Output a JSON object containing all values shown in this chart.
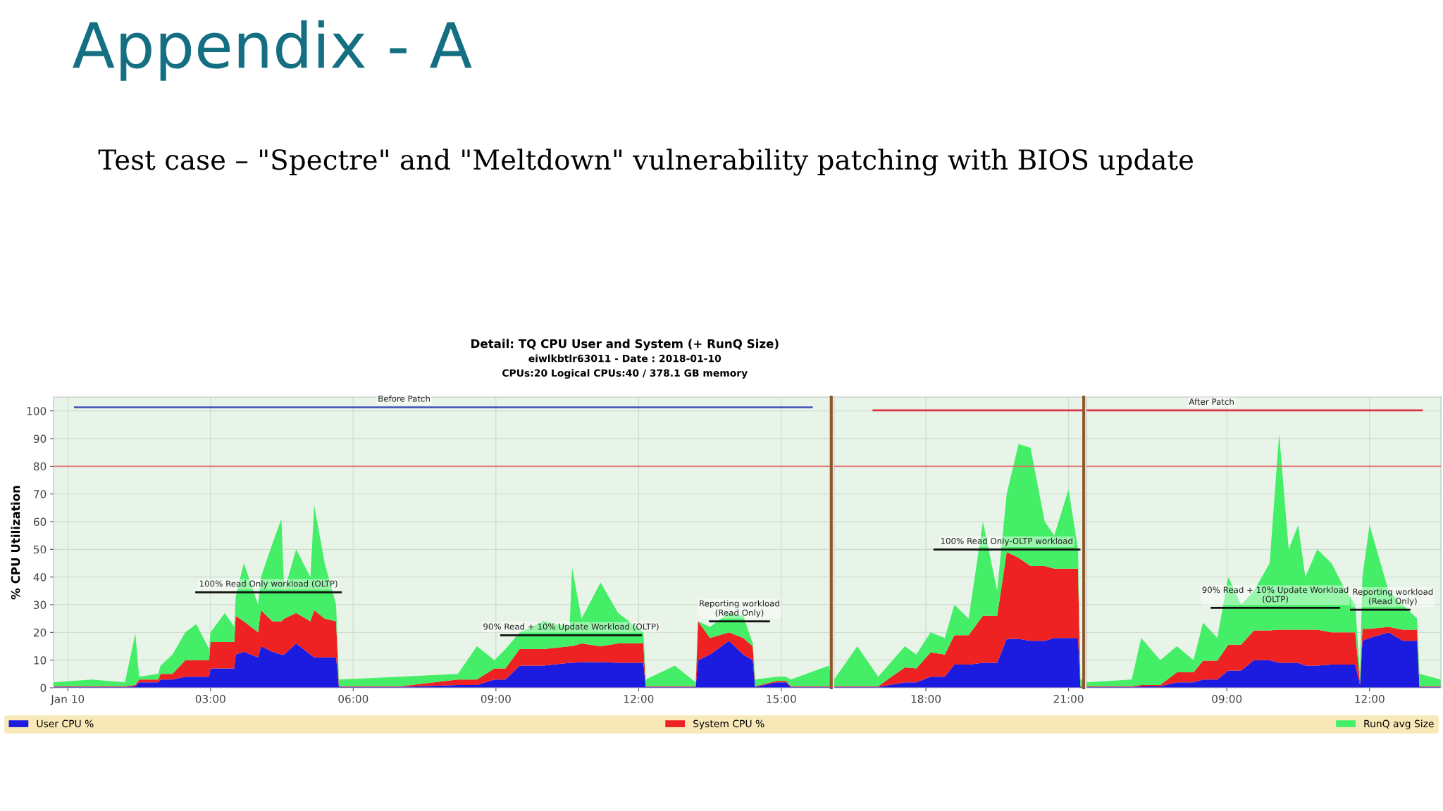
{
  "chart_data": [
    {
      "type": "area",
      "title": "Appendix - A",
      "subtitle": "Test case – \"Spectre\" and \"Meltdown\" vulnerability patching with BIOS update",
      "ylabel": "% CPU Utilization",
      "stacked": true,
      "grid": true,
      "legend": "bottom",
      "xlim": [
        -0.3,
        16.05
      ],
      "xticks": [
        {
          "value": 0,
          "label": "Jan 10"
        },
        {
          "value": 3,
          "label": "03:00"
        },
        {
          "value": 6,
          "label": "06:00"
        },
        {
          "value": 9,
          "label": "09:00"
        },
        {
          "value": 12,
          "label": "12:00"
        },
        {
          "value": 15,
          "label": "15:00"
        }
      ],
      "ylim": [
        0,
        105
      ],
      "yticks": [
        0,
        10,
        20,
        30,
        40,
        50,
        60,
        70,
        80,
        90,
        100
      ],
      "ref_lines": [
        {
          "axis": "y",
          "value": 80,
          "color": "#e07070"
        }
      ],
      "x": [
        -0.3,
        0.5,
        1.2,
        1.42,
        1.5,
        1.9,
        1.95,
        2.2,
        2.47,
        2.7,
        2.97,
        3.0,
        3.3,
        3.5,
        3.53,
        3.7,
        4.0,
        4.06,
        4.3,
        4.49,
        4.55,
        4.8,
        5.1,
        5.18,
        5.4,
        5.64,
        5.7,
        7.0,
        8.2,
        8.6,
        8.97,
        9.2,
        9.5,
        10.0,
        10.55,
        10.6,
        10.8,
        11.2,
        11.57,
        12.1,
        12.15,
        12.76,
        13.2,
        13.25,
        13.5,
        13.9,
        14.2,
        14.4,
        14.45,
        14.9,
        15.1,
        15.2,
        16.0,
        16.05
      ],
      "series": [
        {
          "name": "User CPU %",
          "color": "#1c1ce0",
          "values": [
            0.3,
            0.3,
            0.3,
            0.5,
            2,
            2,
            3,
            3,
            4,
            4,
            4,
            7,
            7,
            7,
            12,
            13,
            11,
            15,
            13,
            12,
            12,
            16,
            12,
            11,
            11,
            11,
            0.3,
            0.3,
            1,
            1,
            3,
            3,
            8,
            8,
            9,
            9,
            9.3,
            9.3,
            9,
            9,
            0.3,
            0.3,
            0.3,
            10,
            12,
            17,
            12,
            10,
            0.3,
            2,
            2,
            0.3,
            0.3,
            0.3
          ]
        },
        {
          "name": "System CPU %",
          "color": "#ee2222",
          "values": [
            0.3,
            0.3,
            0.3,
            0.5,
            1,
            1,
            2,
            2,
            6,
            6,
            6,
            9.5,
            9.5,
            9.5,
            14,
            11,
            9,
            13,
            11,
            12,
            13,
            11,
            12,
            17,
            14,
            13,
            0.3,
            0.3,
            2,
            2,
            4,
            4,
            6,
            6,
            6,
            6,
            6.7,
            5.7,
            7,
            7,
            0.3,
            0.3,
            0.3,
            14,
            6,
            3,
            6,
            5,
            0.3,
            0.5,
            0.5,
            0.3,
            0.3,
            0.3
          ]
        },
        {
          "name": "RunQ avg Size",
          "color": "#44ee66",
          "values": [
            1.4,
            2.4,
            1.4,
            18.6,
            1,
            2,
            3,
            7,
            10,
            13,
            4,
            3.5,
            10.5,
            5.5,
            7,
            21,
            10,
            12,
            28,
            37,
            10,
            23,
            16,
            38,
            20,
            6,
            2.4,
            3.4,
            2,
            12,
            3,
            7,
            6,
            10,
            7,
            28.5,
            9,
            23,
            11,
            4,
            2.4,
            7.4,
            1.4,
            0,
            4,
            7,
            8,
            1,
            2.4,
            1.5,
            1.5,
            2.4,
            7.4,
            2.4
          ]
        },
        {
          "type": "line",
          "color": "#4a5ab8",
          "x": [
            0.15,
            15.64
          ],
          "values": [
            101.3,
            101.3
          ]
        },
        {
          "type": "line",
          "color": "#111111",
          "x": [
            2.7,
            5.74
          ],
          "values": [
            34.5,
            34.5
          ]
        },
        {
          "type": "line",
          "color": "#111111",
          "x": [
            9.11,
            12.05
          ],
          "values": [
            19,
            19
          ]
        },
        {
          "type": "line",
          "color": "#111111",
          "x": [
            13.5,
            14.74
          ],
          "values": [
            24,
            24
          ]
        }
      ],
      "annotations": [
        "Detail: TQ CPU User and System (+ RunQ Size)",
        "eiwlkbtlr63011 - Date : 2018-01-10",
        "CPUs:20 Logical CPUs:40 / 378.1 GB memory",
        {
          "text": "Before Patch",
          "x": 7.07,
          "y": 101.3
        },
        {
          "text": "100% Read Only workload (OLTP)",
          "x": 4.22,
          "y": 34.5
        },
        {
          "text": "90% Read + 10% Update Workload (OLTP)",
          "x": 10.58,
          "y": 19
        },
        {
          "text": "Reporting workload\n(Read Only)",
          "x": 14.12,
          "y": 24
        }
      ]
    },
    {
      "type": "area",
      "stacked": true,
      "grid": true,
      "tick_labels": "x",
      "xlim": [
        16.07,
        21.32
      ],
      "xticks": [
        {
          "value": 18,
          "label": "18:00"
        },
        {
          "value": 21,
          "label": "21:00"
        }
      ],
      "ylim": [
        0,
        105
      ],
      "yticks": [
        0,
        10,
        20,
        30,
        40,
        50,
        60,
        70,
        80,
        90,
        100
      ],
      "ref_lines": [
        {
          "axis": "y",
          "value": 80,
          "color": "#e07070"
        }
      ],
      "x": [
        16.07,
        16.56,
        17.0,
        17.56,
        17.8,
        18.1,
        18.4,
        18.6,
        18.9,
        19.2,
        19.5,
        19.7,
        19.95,
        20.2,
        20.5,
        20.7,
        21.0,
        21.2,
        21.25,
        21.32
      ],
      "series": [
        {
          "color": "#1c1ce0",
          "values": [
            0.3,
            0.3,
            0.3,
            2,
            2,
            4,
            4,
            8.4,
            8.4,
            9,
            9,
            17.7,
            17.7,
            17,
            17,
            18,
            18,
            18,
            0.3,
            0.3
          ]
        },
        {
          "color": "#ee2222",
          "values": [
            0.3,
            0.3,
            0.3,
            5.4,
            5,
            8.8,
            8,
            10.6,
            10.6,
            17,
            17,
            31.3,
            29.3,
            27,
            27,
            25,
            25,
            25,
            0.3,
            0.3
          ]
        },
        {
          "color": "#44ee66",
          "values": [
            2.4,
            14.4,
            3.4,
            7.6,
            5,
            7.2,
            6,
            11,
            6,
            34,
            9,
            21,
            41,
            42.7,
            16,
            12,
            28.6,
            7,
            2.4,
            2.4
          ]
        },
        {
          "type": "line",
          "color": "#dd3344",
          "x": [
            16.9,
            21.32
          ],
          "values": [
            100.2,
            100.2
          ]
        },
        {
          "type": "line",
          "color": "#111111",
          "x": [
            18.18,
            21.23
          ],
          "values": [
            49.9,
            49.9
          ]
        }
      ],
      "annotations": [
        {
          "text": "100% Read Only-OLTP workload",
          "x": 19.7,
          "y": 49.9
        }
      ]
    },
    {
      "type": "area",
      "stacked": true,
      "grid": true,
      "tick_labels": "x",
      "xlim": [
        6.05,
        13.5
      ],
      "xticks": [
        {
          "value": 9,
          "label": "09:00"
        },
        {
          "value": 12,
          "label": "12:00"
        }
      ],
      "ylim": [
        0,
        105
      ],
      "yticks": [
        0,
        10,
        20,
        30,
        40,
        50,
        60,
        70,
        80,
        90,
        100
      ],
      "ref_lines": [
        {
          "axis": "y",
          "value": 80,
          "color": "#e07070"
        }
      ],
      "x": [
        6.05,
        7.0,
        7.2,
        7.6,
        7.95,
        8.3,
        8.5,
        8.8,
        9.03,
        9.3,
        9.57,
        9.9,
        10.1,
        10.3,
        10.5,
        10.65,
        10.9,
        11.2,
        11.5,
        11.7,
        11.8,
        11.85,
        12.0,
        12.4,
        12.7,
        13.0,
        13.05,
        13.5
      ],
      "series": [
        {
          "color": "#1c1ce0",
          "values": [
            0.3,
            0.3,
            0.5,
            0.5,
            2,
            2,
            3,
            3,
            6.2,
            6.2,
            10,
            10,
            9,
            9,
            9,
            8,
            8,
            8.4,
            8.4,
            8.4,
            1,
            17,
            18,
            20,
            17,
            17,
            0.3,
            0.3
          ]
        },
        {
          "color": "#ee2222",
          "values": [
            0.3,
            0.3,
            0.5,
            0.5,
            3.6,
            3.6,
            6.8,
            6.8,
            9.4,
            9.4,
            10.7,
            10.7,
            12,
            12,
            12,
            13,
            13,
            11.6,
            11.6,
            11.6,
            1,
            4.3,
            3.3,
            2,
            4,
            4,
            0.3,
            0.3
          ]
        },
        {
          "color": "#44ee66",
          "values": [
            1.4,
            2.4,
            17,
            9,
            9.4,
            4.4,
            13.7,
            8.2,
            24.4,
            14.4,
            14.3,
            24.3,
            70.8,
            29,
            37.7,
            19,
            29,
            25,
            15,
            10,
            3,
            18.7,
            37.5,
            13,
            9,
            4,
            4.4,
            2.4
          ]
        },
        {
          "type": "line",
          "color": "#dd3344",
          "x": [
            6.05,
            13.1
          ],
          "values": [
            100.2,
            100.2
          ]
        },
        {
          "type": "line",
          "color": "#111111",
          "x": [
            8.68,
            11.36
          ],
          "values": [
            28.9,
            28.9
          ]
        },
        {
          "type": "line",
          "color": "#111111",
          "x": [
            11.61,
            12.84
          ],
          "values": [
            28.2,
            28.2
          ]
        }
      ],
      "annotations": [
        {
          "text": "After Patch",
          "x": 8.68,
          "y": 100.2
        },
        {
          "text": "90% Read + 10% Update Workload\n(OLTP)",
          "x": 10.02,
          "y": 28.9
        },
        {
          "text": "Reporting workload\n(Read Only)",
          "x": 12.49,
          "y": 28.2
        }
      ]
    }
  ]
}
